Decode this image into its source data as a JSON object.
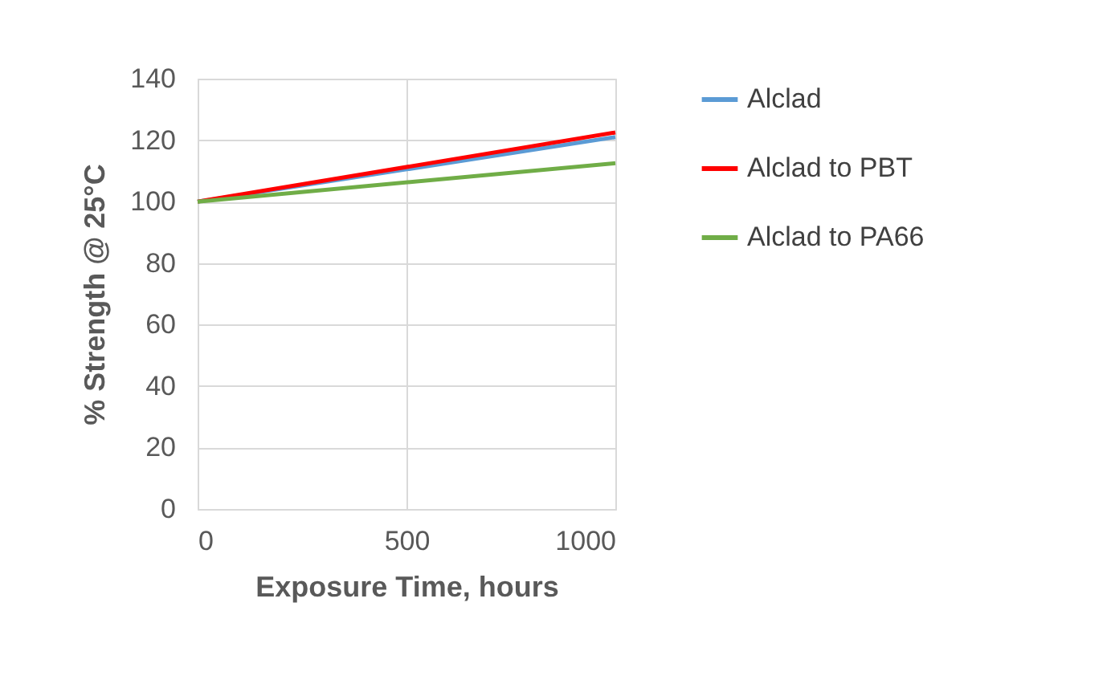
{
  "chart_data": {
    "type": "line",
    "xlabel": "Exposure Time, hours",
    "ylabel": "% Strength @ 25°C",
    "x": [
      0,
      1000
    ],
    "series": [
      {
        "name": "Alclad",
        "color": "#5b9bd5",
        "values": [
          100,
          121
        ]
      },
      {
        "name": "Alclad to PBT",
        "color": "#ff0000",
        "values": [
          100,
          122.5
        ]
      },
      {
        "name": "Alclad to PA66",
        "color": "#70ad47",
        "values": [
          100,
          112.5
        ]
      }
    ],
    "xlim": [
      0,
      1000
    ],
    "xticks": [
      0,
      500,
      1000
    ],
    "ylim": [
      0,
      140
    ],
    "yticks": [
      0,
      20,
      40,
      60,
      80,
      100,
      120,
      140
    ],
    "grid": true,
    "legend": "right",
    "marker": "none",
    "line_style": "solid"
  }
}
